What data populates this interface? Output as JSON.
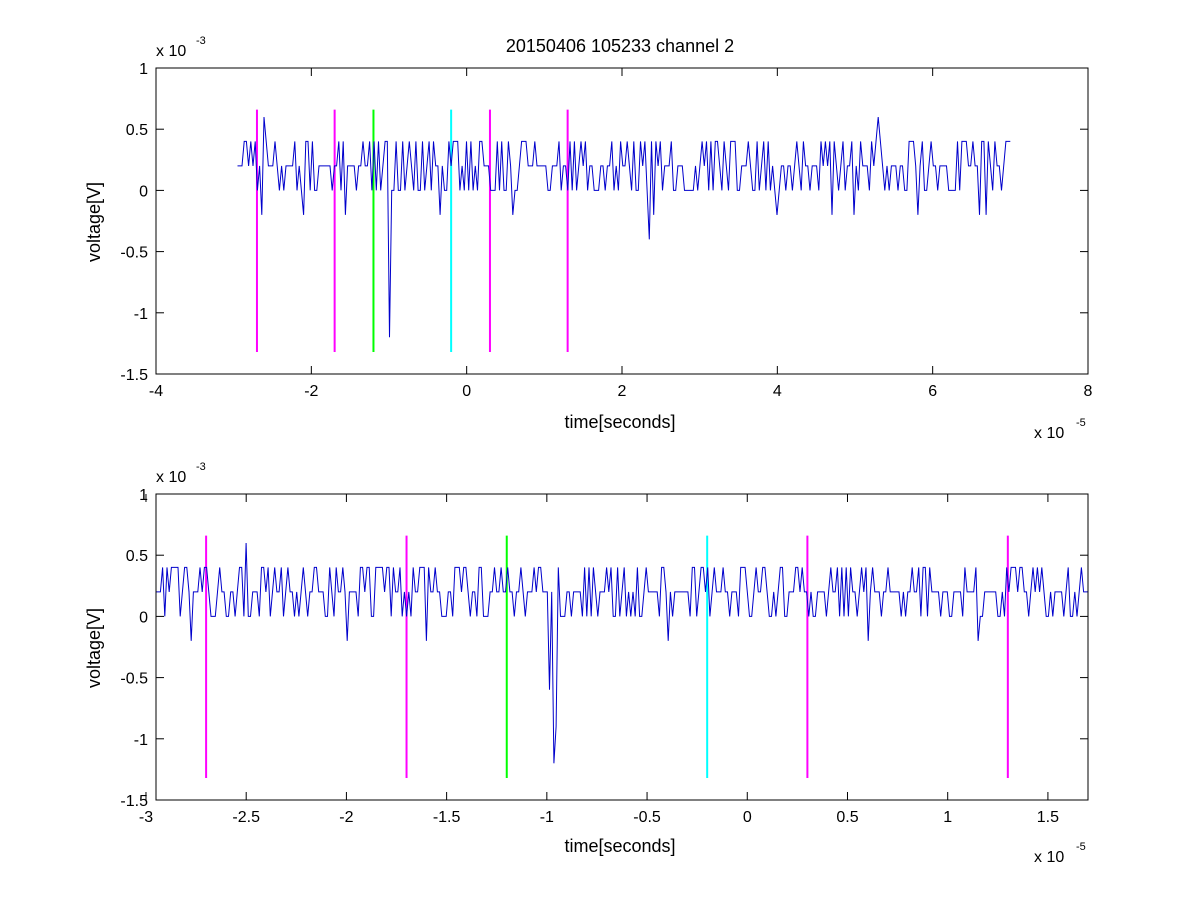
{
  "colors": {
    "signal": "#0000cc",
    "marker_magenta": "#ff00ff",
    "marker_green": "#00ff00",
    "marker_cyan": "#00ffff",
    "axes": "#000000",
    "background": "#ffffff"
  },
  "chart_data": [
    {
      "type": "line",
      "title": "20150406 105233 channel 2",
      "xlabel": "time[seconds]",
      "ylabel": "voltage[V]",
      "x_multiplier_base": "x 10",
      "x_multiplier_exp": "-5",
      "y_multiplier_base": "x 10",
      "y_multiplier_exp": "-3",
      "xlim": [
        -4,
        8
      ],
      "ylim": [
        -1.5,
        1
      ],
      "xticks": [
        -4,
        -2,
        0,
        2,
        4,
        6,
        8
      ],
      "xtick_labels": [
        "-4",
        "-2",
        "0",
        "2",
        "4",
        "6",
        "8"
      ],
      "yticks": [
        -1.5,
        -1,
        -0.5,
        0,
        0.5,
        1
      ],
      "ytick_labels": [
        "-1.5",
        "-1",
        "-0.5",
        "0",
        "0.5",
        "1"
      ],
      "grid": false,
      "signal": {
        "x_start": -2.95,
        "x_end": 7.0,
        "levels": [
          0,
          0.2,
          0.4
        ],
        "seed": 7,
        "spikes": [
          {
            "x": -2.6,
            "y": 0.6
          },
          {
            "x": -2.65,
            "y": -0.2
          },
          {
            "x": -2.1,
            "y": -0.2
          },
          {
            "x": -1.55,
            "y": -0.2
          },
          {
            "x": -1.0,
            "y": -0.6
          },
          {
            "x": -0.98,
            "y": -1.2
          },
          {
            "x": -0.35,
            "y": -0.2
          },
          {
            "x": 0.6,
            "y": -0.2
          },
          {
            "x": 2.35,
            "y": -0.4
          },
          {
            "x": 2.4,
            "y": -0.2
          },
          {
            "x": 4.0,
            "y": -0.2
          },
          {
            "x": 4.7,
            "y": -0.2
          },
          {
            "x": 5.0,
            "y": -0.2
          },
          {
            "x": 5.3,
            "y": 0.6
          },
          {
            "x": 5.8,
            "y": -0.2
          },
          {
            "x": 6.6,
            "y": -0.2
          },
          {
            "x": 6.7,
            "y": -0.2
          }
        ]
      },
      "markers": [
        {
          "x": -2.7,
          "y_top": 0.66,
          "y_bottom": -1.32,
          "color": "#ff00ff"
        },
        {
          "x": -1.7,
          "y_top": 0.66,
          "y_bottom": -1.32,
          "color": "#ff00ff"
        },
        {
          "x": -1.2,
          "y_top": 0.66,
          "y_bottom": -1.32,
          "color": "#00ff00"
        },
        {
          "x": -0.2,
          "y_top": 0.66,
          "y_bottom": -1.32,
          "color": "#00ffff"
        },
        {
          "x": 0.3,
          "y_top": 0.66,
          "y_bottom": -1.32,
          "color": "#ff00ff"
        },
        {
          "x": 1.3,
          "y_top": 0.66,
          "y_bottom": -1.32,
          "color": "#ff00ff"
        }
      ]
    },
    {
      "type": "line",
      "title": "",
      "xlabel": "time[seconds]",
      "ylabel": "voltage[V]",
      "x_multiplier_base": "x 10",
      "x_multiplier_exp": "-5",
      "y_multiplier_base": "x 10",
      "y_multiplier_exp": "-3",
      "xlim": [
        -2.95,
        1.7
      ],
      "ylim": [
        -1.5,
        1
      ],
      "xticks": [
        -3,
        -2.5,
        -2,
        -1.5,
        -1,
        -0.5,
        0,
        0.5,
        1,
        1.5
      ],
      "xtick_labels": [
        "-3",
        "-2.5",
        "-2",
        "-1.5",
        "-1",
        "-0.5",
        "0",
        "0.5",
        "1",
        "1.5"
      ],
      "yticks": [
        -1.5,
        -1,
        -0.5,
        0,
        0.5,
        1
      ],
      "ytick_labels": [
        "-1.5",
        "-1",
        "-0.5",
        "0",
        "0.5",
        "1"
      ],
      "grid": false,
      "signal": {
        "x_start": -2.95,
        "x_end": 1.7,
        "levels": [
          0,
          0.2,
          0.4
        ],
        "seed": 11,
        "spikes": [
          {
            "x": -2.78,
            "y": -0.2
          },
          {
            "x": -2.5,
            "y": 0.6
          },
          {
            "x": -2.0,
            "y": -0.2
          },
          {
            "x": -1.6,
            "y": -0.2
          },
          {
            "x": -0.99,
            "y": -0.6
          },
          {
            "x": -0.97,
            "y": -1.2
          },
          {
            "x": -0.95,
            "y": -0.9
          },
          {
            "x": -0.4,
            "y": -0.2
          },
          {
            "x": 0.6,
            "y": -0.2
          },
          {
            "x": 1.15,
            "y": -0.2
          }
        ]
      },
      "markers": [
        {
          "x": -2.7,
          "y_top": 0.66,
          "y_bottom": -1.32,
          "color": "#ff00ff"
        },
        {
          "x": -1.7,
          "y_top": 0.66,
          "y_bottom": -1.32,
          "color": "#ff00ff"
        },
        {
          "x": -1.2,
          "y_top": 0.66,
          "y_bottom": -1.32,
          "color": "#00ff00"
        },
        {
          "x": -0.2,
          "y_top": 0.66,
          "y_bottom": -1.32,
          "color": "#00ffff"
        },
        {
          "x": 0.3,
          "y_top": 0.66,
          "y_bottom": -1.32,
          "color": "#ff00ff"
        },
        {
          "x": 1.3,
          "y_top": 0.66,
          "y_bottom": -1.32,
          "color": "#ff00ff"
        }
      ]
    }
  ]
}
